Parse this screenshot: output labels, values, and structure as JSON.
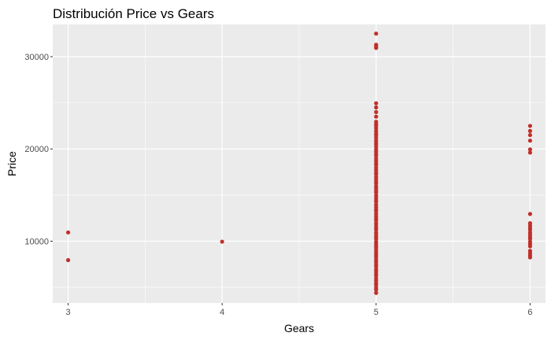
{
  "chart_data": {
    "type": "scatter",
    "title": "Distribución Price vs Gears",
    "xlabel": "Gears",
    "ylabel": "Price",
    "xlim": [
      2.9,
      6.1
    ],
    "ylim": [
      3300,
      33500
    ],
    "x_ticks": [
      3,
      4,
      5,
      6
    ],
    "y_ticks": [
      10000,
      20000,
      30000
    ],
    "grid": true,
    "point_color": "#C0302A",
    "panel_color": "#EBEBEB",
    "points": [
      {
        "x": 3,
        "y": 10950
      },
      {
        "x": 3,
        "y": 7950
      },
      {
        "x": 4,
        "y": 9950
      },
      {
        "x": 5,
        "y": 32500
      },
      {
        "x": 5,
        "y": 31300
      },
      {
        "x": 5,
        "y": 31100
      },
      {
        "x": 5,
        "y": 30950
      },
      {
        "x": 5,
        "y": 24950
      },
      {
        "x": 5,
        "y": 24500
      },
      {
        "x": 5,
        "y": 24000
      },
      {
        "x": 5,
        "y": 23500
      },
      {
        "x": 5,
        "y": 22950
      },
      {
        "x": 5,
        "y": 22700
      },
      {
        "x": 5,
        "y": 22500
      },
      {
        "x": 5,
        "y": 22250
      },
      {
        "x": 5,
        "y": 21950
      },
      {
        "x": 5,
        "y": 21700
      },
      {
        "x": 5,
        "y": 21500
      },
      {
        "x": 5,
        "y": 21250
      },
      {
        "x": 5,
        "y": 20950
      },
      {
        "x": 5,
        "y": 20700
      },
      {
        "x": 5,
        "y": 20500
      },
      {
        "x": 5,
        "y": 20250
      },
      {
        "x": 5,
        "y": 19950
      },
      {
        "x": 5,
        "y": 19700
      },
      {
        "x": 5,
        "y": 19450
      },
      {
        "x": 5,
        "y": 19250
      },
      {
        "x": 5,
        "y": 18950
      },
      {
        "x": 5,
        "y": 18700
      },
      {
        "x": 5,
        "y": 18450
      },
      {
        "x": 5,
        "y": 18250
      },
      {
        "x": 5,
        "y": 17950
      },
      {
        "x": 5,
        "y": 17700
      },
      {
        "x": 5,
        "y": 17450
      },
      {
        "x": 5,
        "y": 17250
      },
      {
        "x": 5,
        "y": 16950
      },
      {
        "x": 5,
        "y": 16700
      },
      {
        "x": 5,
        "y": 16450
      },
      {
        "x": 5,
        "y": 16250
      },
      {
        "x": 5,
        "y": 15950
      },
      {
        "x": 5,
        "y": 15700
      },
      {
        "x": 5,
        "y": 15450
      },
      {
        "x": 5,
        "y": 15250
      },
      {
        "x": 5,
        "y": 14950
      },
      {
        "x": 5,
        "y": 14700
      },
      {
        "x": 5,
        "y": 14450
      },
      {
        "x": 5,
        "y": 14250
      },
      {
        "x": 5,
        "y": 13950
      },
      {
        "x": 5,
        "y": 13700
      },
      {
        "x": 5,
        "y": 13450
      },
      {
        "x": 5,
        "y": 13250
      },
      {
        "x": 5,
        "y": 12950
      },
      {
        "x": 5,
        "y": 12700
      },
      {
        "x": 5,
        "y": 12450
      },
      {
        "x": 5,
        "y": 12250
      },
      {
        "x": 5,
        "y": 11950
      },
      {
        "x": 5,
        "y": 11700
      },
      {
        "x": 5,
        "y": 11450
      },
      {
        "x": 5,
        "y": 11250
      },
      {
        "x": 5,
        "y": 10950
      },
      {
        "x": 5,
        "y": 10700
      },
      {
        "x": 5,
        "y": 10450
      },
      {
        "x": 5,
        "y": 10250
      },
      {
        "x": 5,
        "y": 9950
      },
      {
        "x": 5,
        "y": 9700
      },
      {
        "x": 5,
        "y": 9450
      },
      {
        "x": 5,
        "y": 9250
      },
      {
        "x": 5,
        "y": 8950
      },
      {
        "x": 5,
        "y": 8700
      },
      {
        "x": 5,
        "y": 8450
      },
      {
        "x": 5,
        "y": 8250
      },
      {
        "x": 5,
        "y": 7950
      },
      {
        "x": 5,
        "y": 7700
      },
      {
        "x": 5,
        "y": 7450
      },
      {
        "x": 5,
        "y": 7250
      },
      {
        "x": 5,
        "y": 6950
      },
      {
        "x": 5,
        "y": 6700
      },
      {
        "x": 5,
        "y": 6450
      },
      {
        "x": 5,
        "y": 6250
      },
      {
        "x": 5,
        "y": 5950
      },
      {
        "x": 5,
        "y": 5700
      },
      {
        "x": 5,
        "y": 5450
      },
      {
        "x": 5,
        "y": 5250
      },
      {
        "x": 5,
        "y": 4950
      },
      {
        "x": 5,
        "y": 4750
      },
      {
        "x": 5,
        "y": 4400
      },
      {
        "x": 6,
        "y": 22500
      },
      {
        "x": 6,
        "y": 21950
      },
      {
        "x": 6,
        "y": 21500
      },
      {
        "x": 6,
        "y": 20900
      },
      {
        "x": 6,
        "y": 19950
      },
      {
        "x": 6,
        "y": 19600
      },
      {
        "x": 6,
        "y": 12950
      },
      {
        "x": 6,
        "y": 11950
      },
      {
        "x": 6,
        "y": 11700
      },
      {
        "x": 6,
        "y": 11450
      },
      {
        "x": 6,
        "y": 11250
      },
      {
        "x": 6,
        "y": 10950
      },
      {
        "x": 6,
        "y": 10700
      },
      {
        "x": 6,
        "y": 10450
      },
      {
        "x": 6,
        "y": 10250
      },
      {
        "x": 6,
        "y": 9950
      },
      {
        "x": 6,
        "y": 9700
      },
      {
        "x": 6,
        "y": 9450
      },
      {
        "x": 6,
        "y": 8950
      },
      {
        "x": 6,
        "y": 8700
      },
      {
        "x": 6,
        "y": 8450
      },
      {
        "x": 6,
        "y": 8250
      }
    ]
  }
}
